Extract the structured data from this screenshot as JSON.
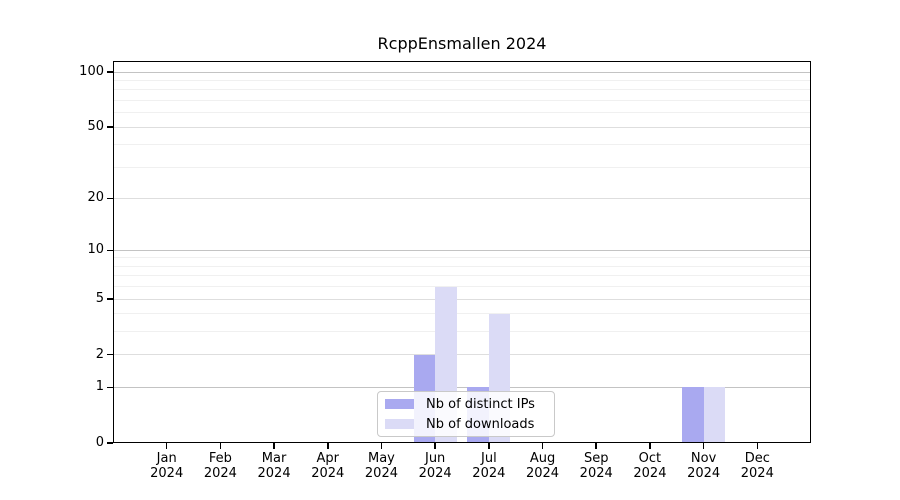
{
  "chart_data": {
    "type": "bar",
    "title": "RcppEnsmallen 2024",
    "categories": [
      "Jan 2024",
      "Feb 2024",
      "Mar 2024",
      "Apr 2024",
      "May 2024",
      "Jun 2024",
      "Jul 2024",
      "Aug 2024",
      "Sep 2024",
      "Oct 2024",
      "Nov 2024",
      "Dec 2024"
    ],
    "series": [
      {
        "name": "Nb of distinct IPs",
        "color": "#a9a9f0",
        "values": [
          0,
          0,
          0,
          0,
          0,
          2,
          1,
          0,
          0,
          0,
          1,
          0
        ]
      },
      {
        "name": "Nb of downloads",
        "color": "#dbdbf6",
        "values": [
          0,
          0,
          0,
          0,
          0,
          6,
          4,
          0,
          0,
          0,
          1,
          0
        ]
      }
    ],
    "xlabel": "",
    "ylabel": "",
    "yscale": "log1p",
    "ylim": [
      0,
      115
    ],
    "yticks": [
      0,
      1,
      2,
      5,
      10,
      20,
      50,
      100
    ],
    "major_gridlines": [
      1,
      10,
      100
    ],
    "mid_gridlines": [
      2,
      5,
      20,
      50
    ],
    "minor_gridlines": [
      3,
      4,
      6,
      7,
      8,
      9,
      30,
      40,
      60,
      70,
      80,
      90
    ],
    "grid": true,
    "legend_position": "lower center"
  }
}
